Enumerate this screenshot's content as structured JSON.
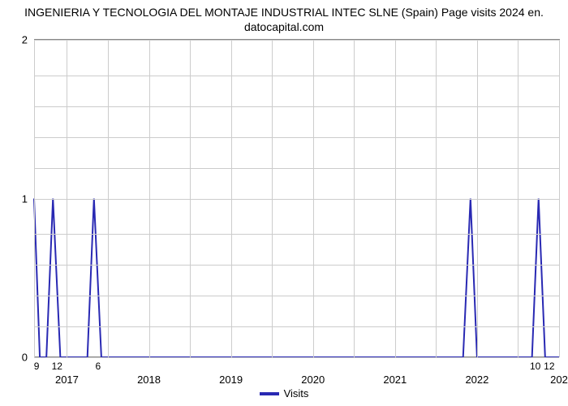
{
  "chart": {
    "type": "line",
    "title": "INGENIERIA Y TECNOLOGIA DEL MONTAJE INDUSTRIAL INTEC SLNE (Spain) Page visits 2024 en. datocapital.com",
    "title_fontsize": 14,
    "background_color": "#ffffff",
    "grid_color": "#cccccc",
    "axis_color": "#888888",
    "series_color": "#2929b3",
    "line_width": 2,
    "ylim": [
      0,
      2
    ],
    "yticks": [
      0,
      1,
      2
    ],
    "xlim": [
      2016.6,
      2023.0
    ],
    "x_minor_ticks": [
      {
        "x": 2016.63,
        "label": "9"
      },
      {
        "x": 2016.88,
        "label": "12"
      },
      {
        "x": 2017.38,
        "label": "6"
      },
      {
        "x": 2022.71,
        "label": "10"
      },
      {
        "x": 2022.88,
        "label": "12"
      }
    ],
    "x_major_ticks": [
      {
        "x": 2017.0,
        "label": "2017"
      },
      {
        "x": 2018.0,
        "label": "2018"
      },
      {
        "x": 2019.0,
        "label": "2019"
      },
      {
        "x": 2020.0,
        "label": "2020"
      },
      {
        "x": 2021.0,
        "label": "2021"
      },
      {
        "x": 2022.0,
        "label": "2022"
      },
      {
        "x": 2023.0,
        "label": "202"
      }
    ],
    "vgrid": [
      2016.6,
      2017.0,
      2017.5,
      2018.0,
      2018.5,
      2019.0,
      2019.5,
      2020.0,
      2020.5,
      2021.0,
      2021.5,
      2022.0,
      2022.5,
      2023.0
    ],
    "hgrid_minor": [
      0.194,
      0.388,
      0.582,
      0.776,
      1.194,
      1.388,
      1.582,
      1.776
    ],
    "data": [
      {
        "x": 2016.6,
        "y": 1.0
      },
      {
        "x": 2016.67,
        "y": 0.0
      },
      {
        "x": 2016.75,
        "y": 0.0
      },
      {
        "x": 2016.83,
        "y": 1.0
      },
      {
        "x": 2016.92,
        "y": 0.0
      },
      {
        "x": 2017.0,
        "y": 0.0
      },
      {
        "x": 2017.08,
        "y": 0.0
      },
      {
        "x": 2017.17,
        "y": 0.0
      },
      {
        "x": 2017.25,
        "y": 0.0
      },
      {
        "x": 2017.33,
        "y": 1.0
      },
      {
        "x": 2017.42,
        "y": 0.0
      },
      {
        "x": 2017.5,
        "y": 0.0
      },
      {
        "x": 2018.0,
        "y": 0.0
      },
      {
        "x": 2019.0,
        "y": 0.0
      },
      {
        "x": 2020.0,
        "y": 0.0
      },
      {
        "x": 2021.0,
        "y": 0.0
      },
      {
        "x": 2021.5,
        "y": 0.0
      },
      {
        "x": 2021.83,
        "y": 0.0
      },
      {
        "x": 2021.92,
        "y": 1.0
      },
      {
        "x": 2022.0,
        "y": 0.0
      },
      {
        "x": 2022.5,
        "y": 0.0
      },
      {
        "x": 2022.67,
        "y": 0.0
      },
      {
        "x": 2022.75,
        "y": 1.0
      },
      {
        "x": 2022.83,
        "y": 0.0
      },
      {
        "x": 2023.0,
        "y": 0.0
      }
    ],
    "legend": {
      "label": "Visits",
      "swatch_color": "#2929b3"
    }
  }
}
